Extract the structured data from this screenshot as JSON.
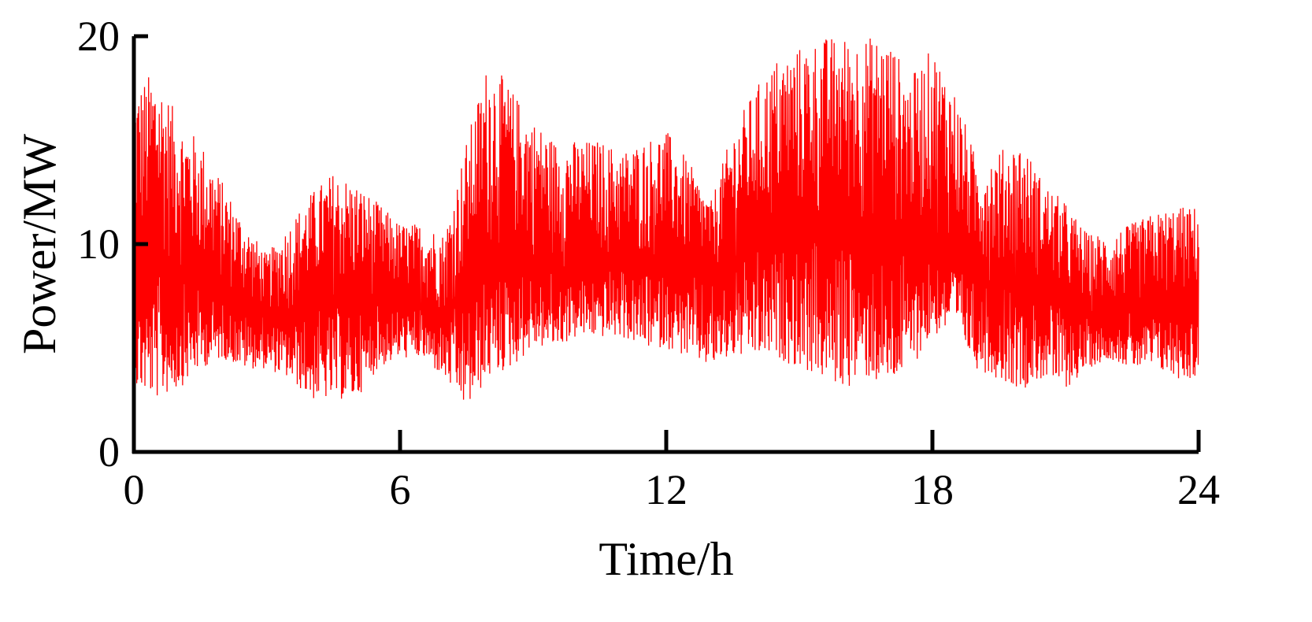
{
  "chart_data": {
    "type": "line",
    "title": "",
    "xlabel": "Time/h",
    "ylabel": "Power/MW",
    "xlim": [
      0,
      24
    ],
    "ylim": [
      0,
      20
    ],
    "x_ticks": [
      "0",
      "6",
      "12",
      "18",
      "24"
    ],
    "y_ticks": [
      "0",
      "10",
      "20"
    ],
    "grid": false,
    "legend": "none",
    "series_color": "#ff0000",
    "series": [
      {
        "x": [
          0,
          0.5,
          1,
          1.5,
          2,
          2.5,
          3,
          3.5,
          4,
          4.5,
          5,
          5.5,
          6,
          6.5,
          7,
          7.5,
          8,
          8.5,
          9,
          9.5,
          10,
          10.5,
          11,
          11.5,
          12,
          12.5,
          13,
          13.5,
          14,
          14.5,
          15,
          15.5,
          16,
          16.5,
          17,
          17.5,
          18,
          18.5,
          19,
          19.5,
          20,
          20.5,
          21,
          21.5,
          22,
          22.5,
          23,
          23.5,
          24
        ],
        "mean": [
          8.5,
          8.8,
          8.5,
          8.0,
          7.5,
          7.0,
          6.5,
          6.5,
          7.0,
          7.2,
          7.0,
          7.3,
          7.3,
          7.0,
          6.5,
          7.5,
          9.0,
          9.3,
          9.0,
          8.6,
          8.8,
          9.0,
          8.8,
          8.8,
          9.0,
          8.5,
          8.5,
          9.0,
          9.8,
          10.0,
          10.3,
          10.2,
          10.5,
          10.5,
          10.3,
          10.0,
          10.5,
          9.5,
          8.5,
          8.0,
          8.0,
          8.0,
          7.0,
          6.5,
          6.5,
          6.8,
          7.0,
          7.2,
          7.2
        ],
        "upper": [
          17.5,
          18.5,
          16.0,
          15.0,
          13.0,
          11.0,
          9.5,
          11.0,
          12.5,
          13.5,
          13.0,
          12.0,
          11.0,
          11.0,
          10.5,
          15.0,
          19.0,
          17.5,
          16.0,
          15.0,
          15.0,
          15.0,
          14.5,
          15.0,
          15.5,
          14.0,
          12.0,
          15.5,
          17.5,
          19.0,
          19.5,
          20.0,
          20.0,
          20.0,
          20.0,
          18.0,
          19.5,
          17.5,
          14.0,
          14.5,
          15.0,
          13.0,
          12.0,
          10.5,
          10.5,
          11.0,
          11.5,
          11.8,
          11.8
        ],
        "lower": [
          3.0,
          2.5,
          3.0,
          4.0,
          4.5,
          4.0,
          4.0,
          3.5,
          2.5,
          2.5,
          2.5,
          4.0,
          4.5,
          4.5,
          3.5,
          2.0,
          3.5,
          4.0,
          5.0,
          5.0,
          5.5,
          5.5,
          5.5,
          5.0,
          5.0,
          4.5,
          4.0,
          4.5,
          4.5,
          4.5,
          4.0,
          3.5,
          3.0,
          3.5,
          3.0,
          4.0,
          5.5,
          6.0,
          4.0,
          3.5,
          3.0,
          3.5,
          3.0,
          4.0,
          4.5,
          4.0,
          4.0,
          3.5,
          3.5
        ]
      }
    ]
  }
}
